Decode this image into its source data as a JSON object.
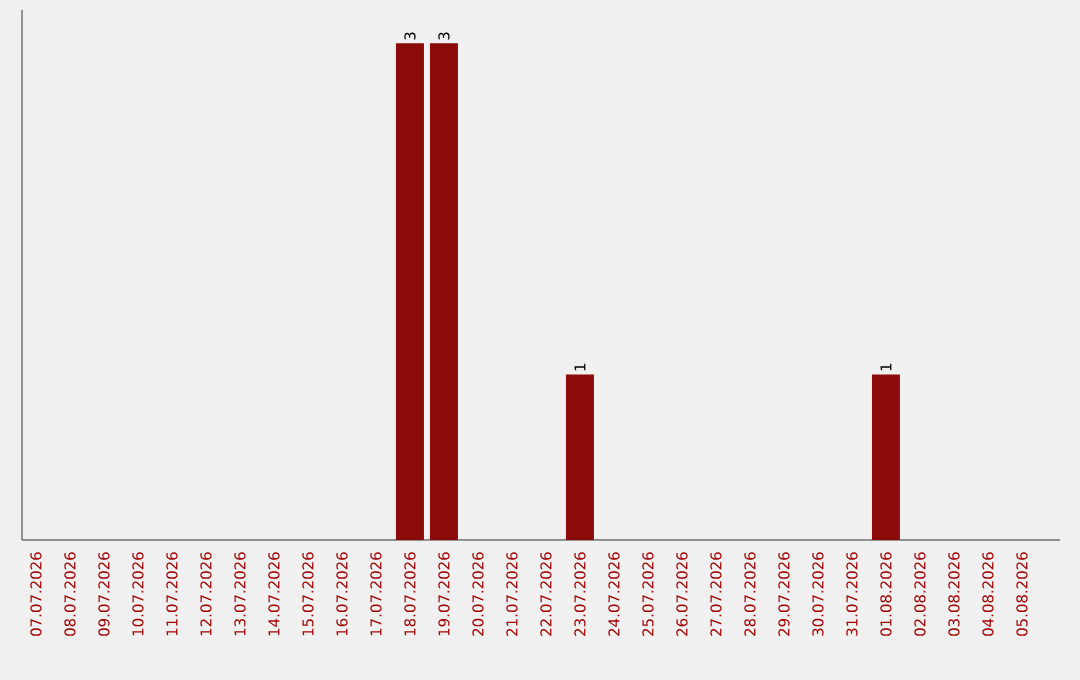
{
  "chart_data": {
    "type": "bar",
    "categories": [
      "07.07.2026",
      "08.07.2026",
      "09.07.2026",
      "10.07.2026",
      "11.07.2026",
      "12.07.2026",
      "13.07.2026",
      "14.07.2026",
      "15.07.2026",
      "16.07.2026",
      "17.07.2026",
      "18.07.2026",
      "19.07.2026",
      "20.07.2026",
      "21.07.2026",
      "22.07.2026",
      "23.07.2026",
      "24.07.2026",
      "25.07.2026",
      "26.07.2026",
      "27.07.2026",
      "28.07.2026",
      "29.07.2026",
      "30.07.2026",
      "31.07.2026",
      "01.08.2026",
      "02.08.2026",
      "03.08.2026",
      "04.08.2026",
      "05.08.2026"
    ],
    "values": [
      0,
      0,
      0,
      0,
      0,
      0,
      0,
      0,
      0,
      0,
      0,
      3,
      3,
      0,
      0,
      0,
      1,
      0,
      0,
      0,
      0,
      0,
      0,
      0,
      0,
      1,
      0,
      0,
      0,
      0
    ],
    "value_labels": [
      null,
      null,
      null,
      null,
      null,
      null,
      null,
      null,
      null,
      null,
      null,
      "3",
      "3",
      null,
      null,
      null,
      "1",
      null,
      null,
      null,
      null,
      null,
      null,
      null,
      null,
      "1",
      null,
      null,
      null,
      null
    ],
    "color": "#8b0a0a",
    "ylim": [
      0,
      3.2
    ]
  }
}
